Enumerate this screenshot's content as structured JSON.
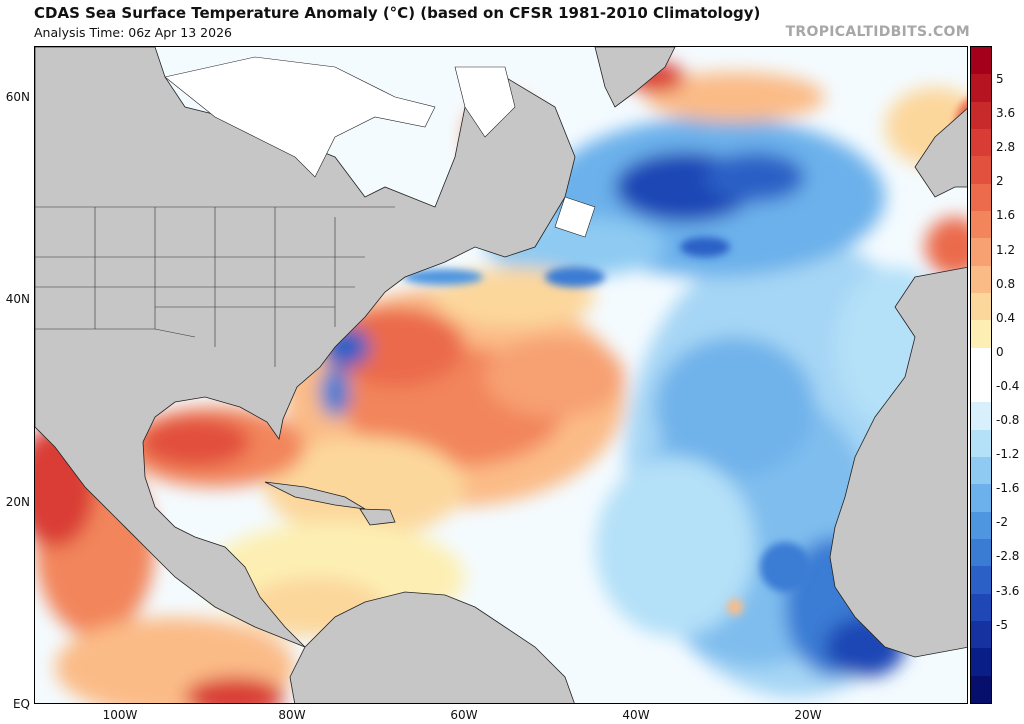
{
  "header": {
    "title": "CDAS Sea Surface Temperature Anomaly (°C) (based on CFSR 1981-2010 Climatology)",
    "analysis_time": "Analysis Time: 06z Apr 13 2026",
    "watermark": "TROPICALTIDBITS.COM"
  },
  "map": {
    "latitude_labels": [
      "60N",
      "40N",
      "20N",
      "EQ"
    ],
    "longitude_labels": [
      "100W",
      "80W",
      "60W",
      "40W",
      "20W"
    ],
    "land_color": "#c6c6c6",
    "ice_color": "#ffffff"
  },
  "colorbar": {
    "unit": "°C",
    "tick_labels": [
      "5",
      "3.6",
      "2.8",
      "2",
      "1.6",
      "1.2",
      "0.8",
      "0.4",
      "0",
      "-0.4",
      "-0.8",
      "-1.2",
      "-1.6",
      "-2",
      "-2.8",
      "-3.6",
      "-5"
    ],
    "colors": [
      "#a4001c",
      "#b61421",
      "#c82a2c",
      "#d93c35",
      "#e2503e",
      "#eb6b4c",
      "#f2855c",
      "#f7a072",
      "#fbbb87",
      "#fcd79c",
      "#fdefb3",
      "#ffffff",
      "#ffffff",
      "#d7f0fb",
      "#b4e0f8",
      "#8ecaf2",
      "#6cb1eb",
      "#4f96e0",
      "#3a7bd4",
      "#2b60c6",
      "#1f47b5",
      "#1532a0",
      "#0a1e88",
      "#060f6c"
    ]
  }
}
